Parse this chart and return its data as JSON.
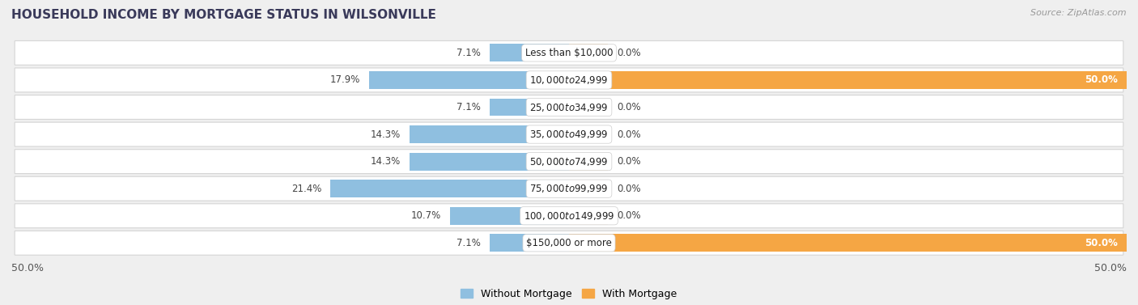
{
  "title": "HOUSEHOLD INCOME BY MORTGAGE STATUS IN WILSONVILLE",
  "source": "Source: ZipAtlas.com",
  "categories": [
    "Less than $10,000",
    "$10,000 to $24,999",
    "$25,000 to $34,999",
    "$35,000 to $49,999",
    "$50,000 to $74,999",
    "$75,000 to $99,999",
    "$100,000 to $149,999",
    "$150,000 or more"
  ],
  "without_mortgage": [
    7.1,
    17.9,
    7.1,
    14.3,
    14.3,
    21.4,
    10.7,
    7.1
  ],
  "with_mortgage": [
    0.0,
    50.0,
    0.0,
    0.0,
    0.0,
    0.0,
    0.0,
    50.0
  ],
  "color_without": "#8FBFE0",
  "color_with_full": "#F5A644",
  "color_with_light": "#F5D5A8",
  "xlim_left": -50.0,
  "xlim_right": 50.0,
  "x_axis_left_label": "50.0%",
  "x_axis_right_label": "50.0%",
  "legend_without": "Without Mortgage",
  "legend_with": "With Mortgage",
  "bg_color": "#EFEFEF",
  "row_bg_color": "#FFFFFF",
  "title_color": "#3A3A5A",
  "source_color": "#999999",
  "label_fontsize": 8.5,
  "title_fontsize": 11,
  "source_fontsize": 8
}
